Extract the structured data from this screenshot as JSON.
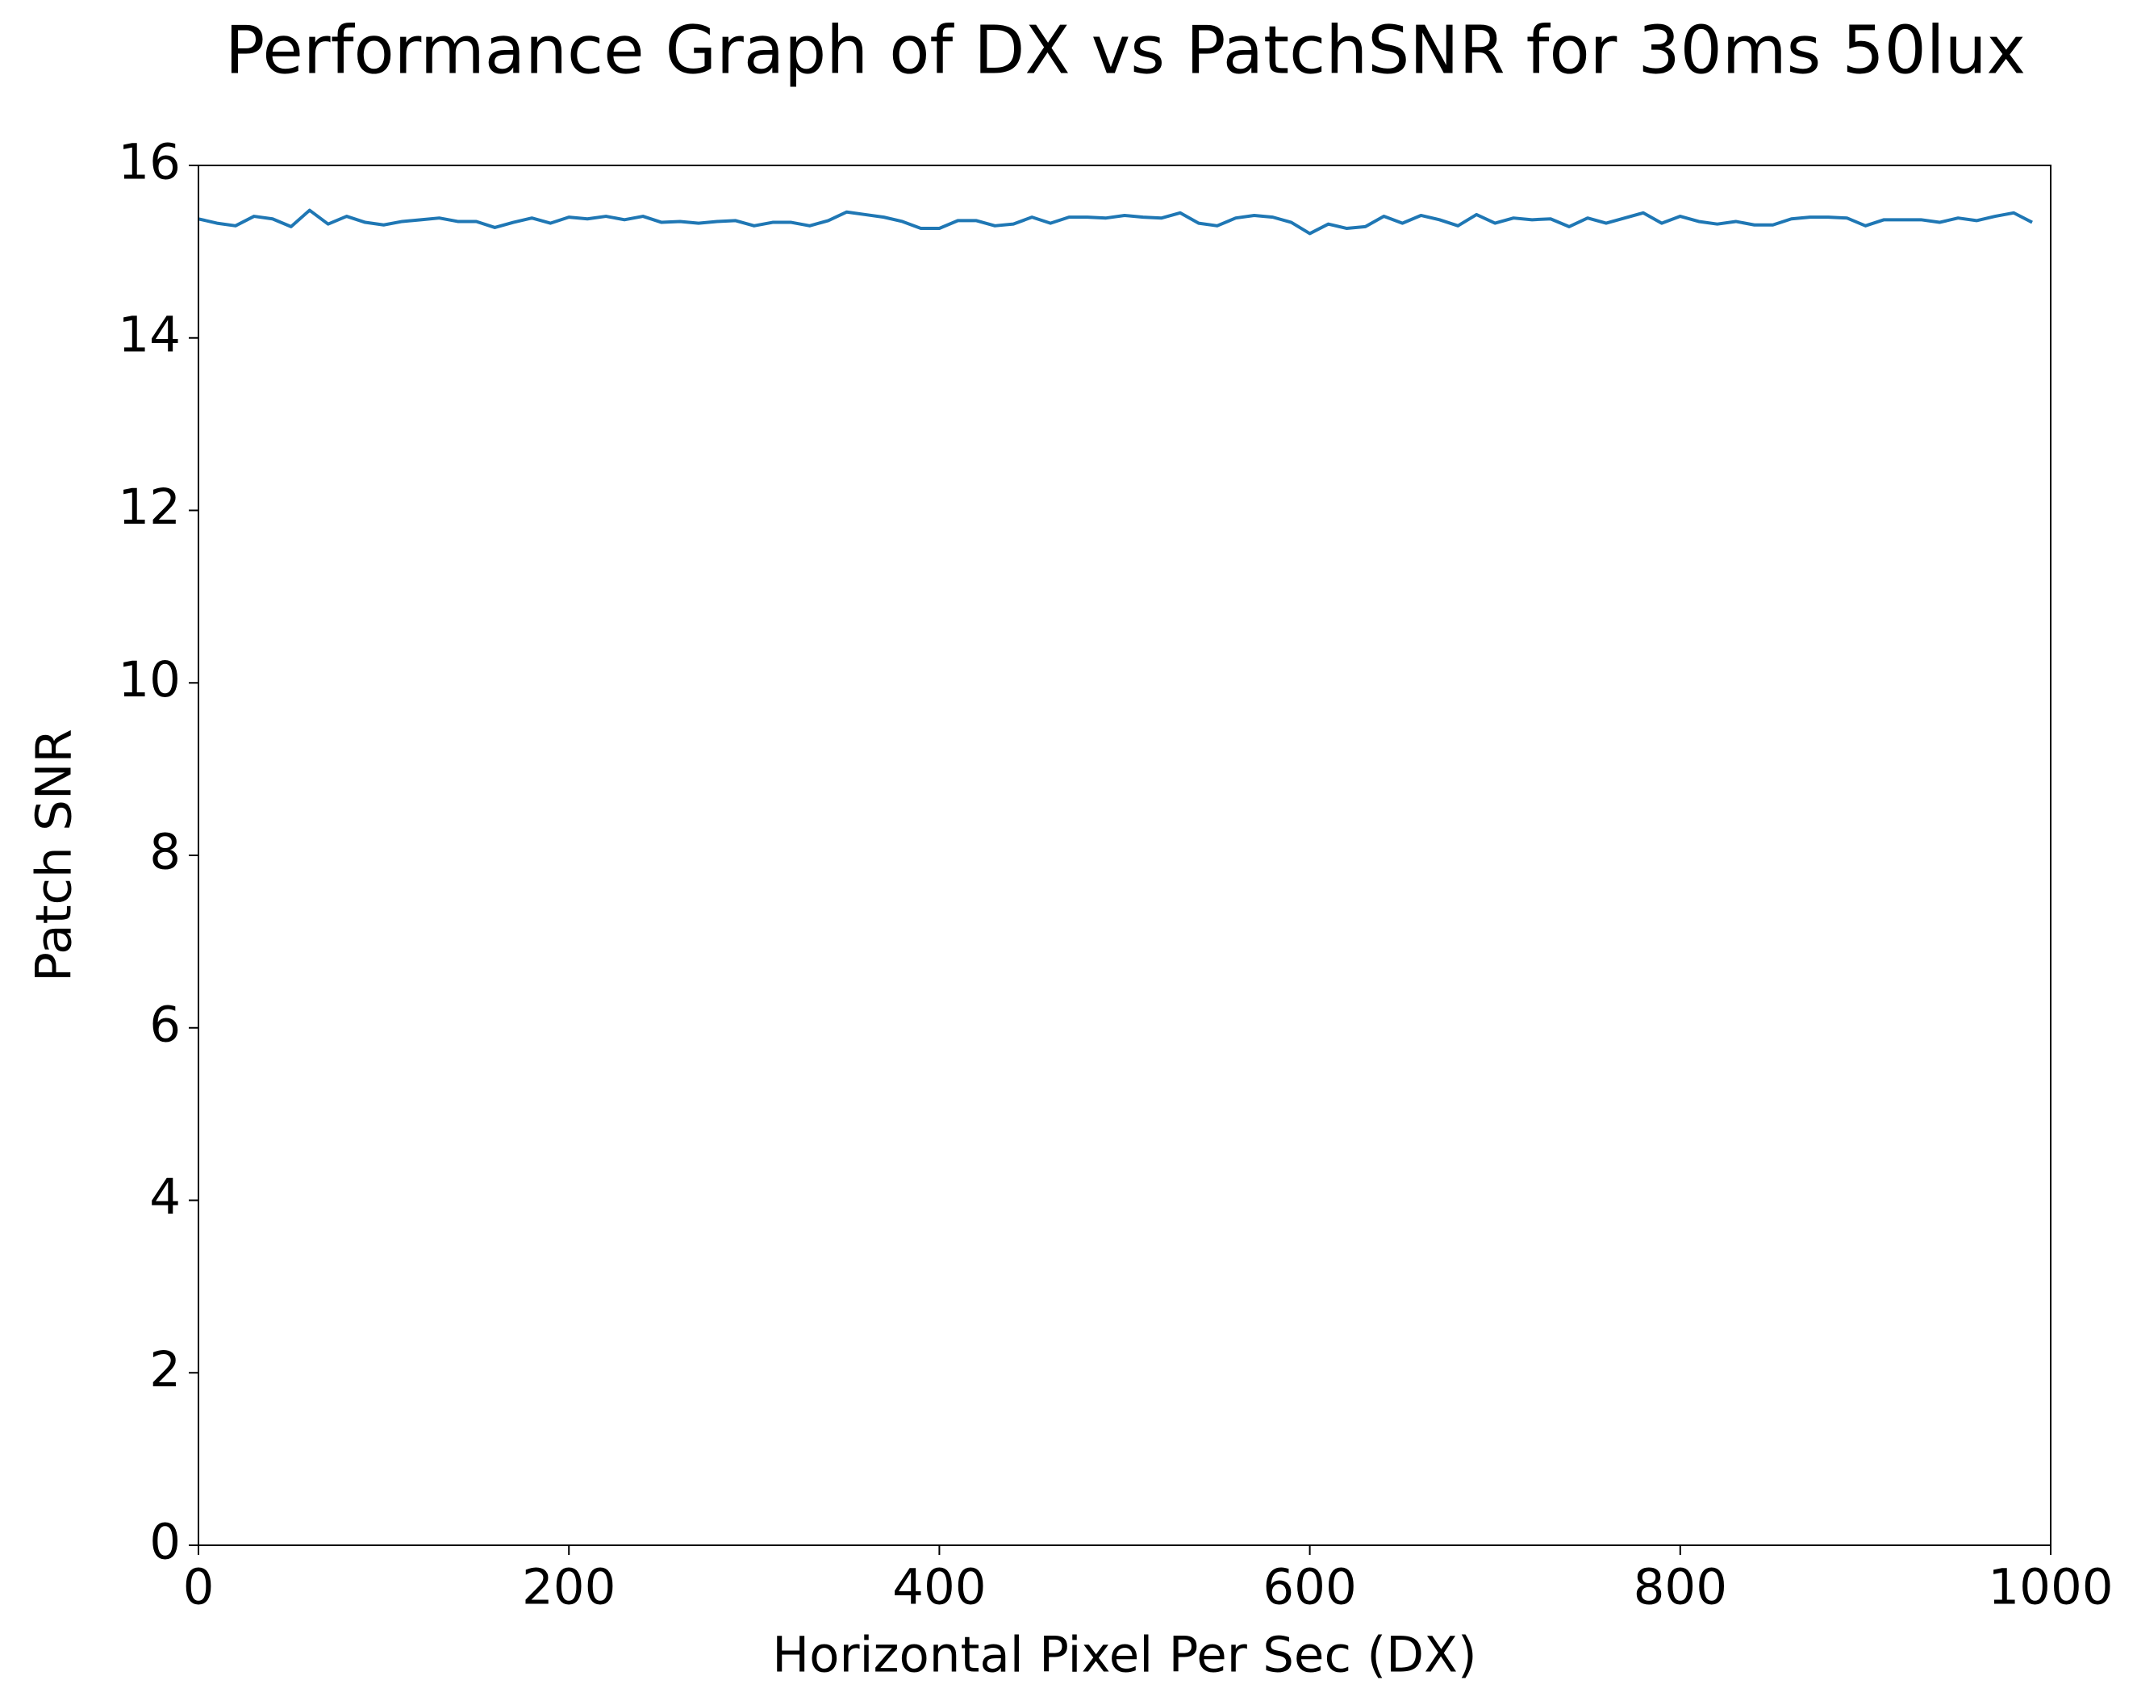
{
  "chart_data": {
    "type": "line",
    "title": "Performance Graph of DX vs PatchSNR for 30ms 50lux",
    "x_label": "Horizontal Pixel Per Sec (DX)",
    "y_label": "Patch SNR",
    "x": [
      0,
      10,
      20,
      30,
      40,
      50,
      60,
      70,
      80,
      90,
      100,
      110,
      120,
      130,
      140,
      150,
      160,
      170,
      180,
      190,
      200,
      210,
      220,
      230,
      240,
      250,
      260,
      270,
      280,
      290,
      300,
      310,
      320,
      330,
      340,
      350,
      360,
      370,
      380,
      390,
      400,
      410,
      420,
      430,
      440,
      450,
      460,
      470,
      480,
      490,
      500,
      510,
      520,
      530,
      540,
      550,
      560,
      570,
      580,
      590,
      600,
      610,
      620,
      630,
      640,
      650,
      660,
      670,
      680,
      690,
      700,
      710,
      720,
      730,
      740,
      750,
      760,
      770,
      780,
      790,
      800,
      810,
      820,
      830,
      840,
      850,
      860,
      870,
      880,
      890,
      900,
      910,
      920,
      930,
      940,
      950,
      960,
      970,
      980,
      990
    ],
    "series": [
      {
        "color": "#1f77b4",
        "values": [
          15.38,
          15.33,
          15.3,
          15.41,
          15.38,
          15.29,
          15.48,
          15.32,
          15.41,
          15.34,
          15.31,
          15.35,
          15.37,
          15.39,
          15.35,
          15.35,
          15.28,
          15.34,
          15.39,
          15.33,
          15.4,
          15.38,
          15.41,
          15.37,
          15.41,
          15.34,
          15.35,
          15.33,
          15.35,
          15.36,
          15.3,
          15.34,
          15.34,
          15.3,
          15.36,
          15.46,
          15.43,
          15.4,
          15.35,
          15.27,
          15.27,
          15.36,
          15.36,
          15.3,
          15.32,
          15.4,
          15.33,
          15.4,
          15.4,
          15.39,
          15.42,
          15.4,
          15.39,
          15.45,
          15.33,
          15.3,
          15.39,
          15.42,
          15.4,
          15.34,
          15.21,
          15.32,
          15.27,
          15.29,
          15.41,
          15.33,
          15.42,
          15.37,
          15.3,
          15.43,
          15.33,
          15.39,
          15.37,
          15.38,
          15.29,
          15.39,
          15.33,
          15.39,
          15.45,
          15.33,
          15.41,
          15.35,
          15.32,
          15.35,
          15.31,
          15.31,
          15.38,
          15.4,
          15.4,
          15.39,
          15.3,
          15.37,
          15.37,
          15.37,
          15.34,
          15.39,
          15.36,
          15.41,
          15.45,
          15.34
        ]
      }
    ],
    "xlim": [
      0,
      1000
    ],
    "ylim": [
      0,
      16
    ],
    "xticks": [
      0,
      200,
      400,
      600,
      800,
      1000
    ],
    "yticks": [
      0,
      2,
      4,
      6,
      8,
      10,
      12,
      14,
      16
    ],
    "grid": false
  }
}
